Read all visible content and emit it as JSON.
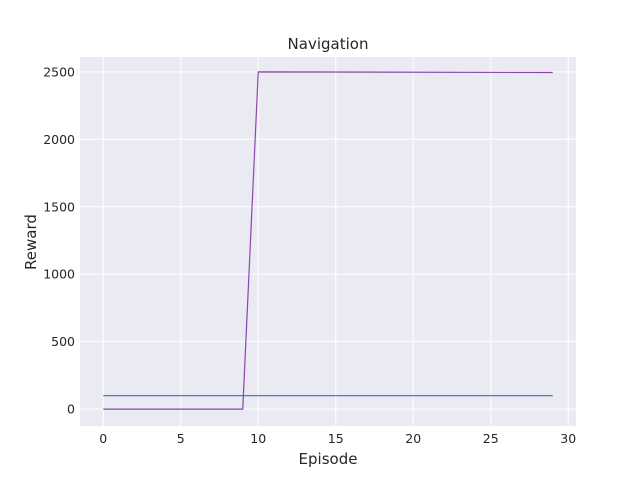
{
  "chart_data": {
    "type": "line",
    "title": "Navigation",
    "xlabel": "Episode",
    "ylabel": "Reward",
    "xlim": [
      -1.5,
      30.5
    ],
    "ylim": [
      -125,
      2610
    ],
    "xticks": [
      0,
      5,
      10,
      15,
      20,
      25,
      30
    ],
    "yticks": [
      0,
      500,
      1000,
      1500,
      2000,
      2500
    ],
    "grid": true,
    "series": [
      {
        "color": "#4878cf",
        "x": [
          0,
          29
        ],
        "y": [
          100,
          100
        ]
      },
      {
        "color": "#8e44ad",
        "x": [
          0,
          9,
          10,
          29
        ],
        "y": [
          0,
          0,
          2500,
          2495
        ]
      }
    ]
  }
}
